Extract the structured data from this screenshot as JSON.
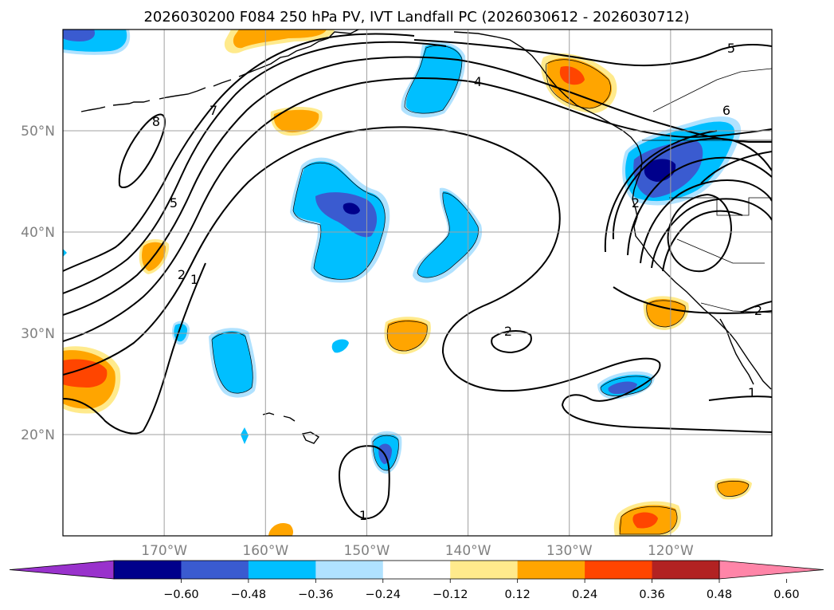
{
  "chart_data": {
    "type": "contour-map",
    "title": "2026030200 F084 250 hPa PV, IVT Landfall PC (2026030612 - 2026030712)",
    "longitude_ticks": [
      "170°W",
      "160°W",
      "150°W",
      "140°W",
      "130°W",
      "120°W"
    ],
    "latitude_ticks": [
      "50°N",
      "40°N",
      "30°N",
      "20°N"
    ],
    "lon_range": [
      -180,
      -110
    ],
    "lat_range": [
      10,
      60
    ],
    "grid": true,
    "colorbar": {
      "orientation": "horizontal",
      "extend": "both",
      "tick_labels": [
        "−0.60",
        "−0.48",
        "−0.36",
        "−0.24",
        "−0.12",
        "0.12",
        "0.24",
        "0.36",
        "0.48",
        "0.60"
      ],
      "levels": [
        -0.6,
        -0.48,
        -0.36,
        -0.24,
        -0.12,
        0.12,
        0.24,
        0.36,
        0.48,
        0.6
      ],
      "colors": [
        "#9932cc",
        "#00008b",
        "#3a5bd0",
        "#00bfff",
        "#b0e2ff",
        "#ffffff",
        "#ffea8c",
        "#ffa500",
        "#ff4500",
        "#b22222",
        "#ff85a8"
      ]
    },
    "contour_labels": [
      "8",
      "7",
      "5",
      "2",
      "1",
      "4",
      "5",
      "6",
      "2",
      "1",
      "2",
      "1",
      "2"
    ],
    "anomaly_features": [
      {
        "name": "positive PV anomaly over Gulf of Alaska coast",
        "lon": -131,
        "lat": 55,
        "max_value": 0.48
      },
      {
        "name": "negative PV anomaly off Pacific Northwest",
        "lon": -121,
        "lat": 46,
        "min_value": -0.6
      },
      {
        "name": "negative PV anomaly in central North Pacific",
        "lon": -150,
        "lat": 42,
        "min_value": -0.6
      },
      {
        "name": "positive PV anomaly near dateline",
        "lon": -178,
        "lat": 26,
        "max_value": 0.48
      },
      {
        "name": "positive PV anomaly off Baja California",
        "lon": -123,
        "lat": 12,
        "max_value": 0.48
      }
    ]
  }
}
